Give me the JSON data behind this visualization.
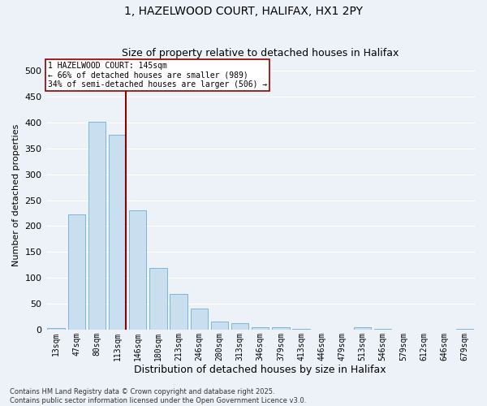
{
  "title1": "1, HAZELWOOD COURT, HALIFAX, HX1 2PY",
  "title2": "Size of property relative to detached houses in Halifax",
  "xlabel": "Distribution of detached houses by size in Halifax",
  "ylabel": "Number of detached properties",
  "categories": [
    "13sqm",
    "47sqm",
    "80sqm",
    "113sqm",
    "146sqm",
    "180sqm",
    "213sqm",
    "246sqm",
    "280sqm",
    "313sqm",
    "346sqm",
    "379sqm",
    "413sqm",
    "446sqm",
    "479sqm",
    "513sqm",
    "546sqm",
    "579sqm",
    "612sqm",
    "646sqm",
    "679sqm"
  ],
  "values": [
    3,
    222,
    402,
    376,
    230,
    119,
    69,
    40,
    16,
    13,
    5,
    5,
    2,
    0,
    0,
    5,
    1,
    0,
    0,
    0,
    1
  ],
  "bar_color": "#c9dff0",
  "bar_edge_color": "#6baed6",
  "vline_index": 3,
  "vline_color": "#8b0000",
  "annotation_text": "1 HAZELWOOD COURT: 145sqm\n← 66% of detached houses are smaller (989)\n34% of semi-detached houses are larger (506) →",
  "annotation_box_color": "white",
  "annotation_box_edge_color": "#8b0000",
  "ylim": [
    0,
    520
  ],
  "yticks": [
    0,
    50,
    100,
    150,
    200,
    250,
    300,
    350,
    400,
    450,
    500
  ],
  "footnote": "Contains HM Land Registry data © Crown copyright and database right 2025.\nContains public sector information licensed under the Open Government Licence v3.0.",
  "bg_color": "#edf2f9",
  "grid_color": "white",
  "title_fontsize": 10,
  "subtitle_fontsize": 9,
  "axis_label_fontsize": 8,
  "tick_fontsize": 7
}
